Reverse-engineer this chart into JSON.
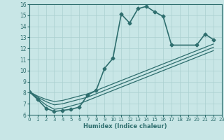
{
  "xlabel": "Humidex (Indice chaleur)",
  "xlim": [
    0,
    23
  ],
  "ylim": [
    6,
    16
  ],
  "xticks": [
    0,
    1,
    2,
    3,
    4,
    5,
    6,
    7,
    8,
    9,
    10,
    11,
    12,
    13,
    14,
    15,
    16,
    17,
    18,
    19,
    20,
    21,
    22,
    23
  ],
  "yticks": [
    6,
    7,
    8,
    9,
    10,
    11,
    12,
    13,
    14,
    15,
    16
  ],
  "background_color": "#c8e6e6",
  "grid_color": "#aad0d0",
  "line_color": "#2e6e6e",
  "lines": [
    {
      "x": [
        0,
        1,
        2,
        3,
        4,
        5,
        6,
        7,
        8,
        9,
        10,
        11,
        12,
        13,
        14,
        15,
        16,
        17,
        20,
        21,
        22
      ],
      "y": [
        8.1,
        7.4,
        6.6,
        6.3,
        6.4,
        6.5,
        6.7,
        7.8,
        8.2,
        10.2,
        11.1,
        15.1,
        14.3,
        15.6,
        15.8,
        15.3,
        14.9,
        12.3,
        12.3,
        13.3,
        12.8
      ],
      "marker": "D",
      "markersize": 2.5,
      "linewidth": 1.2,
      "linestyle": "-"
    },
    {
      "x": [
        0,
        1,
        2,
        3,
        4,
        5,
        6,
        7,
        8,
        9,
        10,
        11,
        12,
        13,
        14,
        15,
        16,
        17,
        20,
        21,
        22
      ],
      "y": [
        8.1,
        7.7,
        7.4,
        7.2,
        7.3,
        7.5,
        7.7,
        7.9,
        8.2,
        8.5,
        8.8,
        9.1,
        9.4,
        9.7,
        10.0,
        10.3,
        10.6,
        10.9,
        11.8,
        12.1,
        12.4
      ],
      "marker": null,
      "markersize": 0,
      "linewidth": 0.9,
      "linestyle": "-"
    },
    {
      "x": [
        0,
        1,
        2,
        3,
        4,
        5,
        6,
        7,
        8,
        9,
        10,
        11,
        12,
        13,
        14,
        15,
        16,
        17,
        20,
        21,
        22
      ],
      "y": [
        8.1,
        7.6,
        7.2,
        6.9,
        7.0,
        7.2,
        7.4,
        7.6,
        7.9,
        8.2,
        8.5,
        8.8,
        9.1,
        9.4,
        9.7,
        10.0,
        10.3,
        10.6,
        11.5,
        11.8,
        12.1
      ],
      "marker": null,
      "markersize": 0,
      "linewidth": 0.9,
      "linestyle": "-"
    },
    {
      "x": [
        0,
        1,
        2,
        3,
        4,
        5,
        6,
        7,
        8,
        9,
        10,
        11,
        12,
        13,
        14,
        15,
        16,
        17,
        20,
        21,
        22
      ],
      "y": [
        8.1,
        7.5,
        6.9,
        6.5,
        6.6,
        6.8,
        7.0,
        7.3,
        7.6,
        7.9,
        8.2,
        8.5,
        8.8,
        9.1,
        9.4,
        9.7,
        10.0,
        10.3,
        11.2,
        11.5,
        11.8
      ],
      "marker": null,
      "markersize": 0,
      "linewidth": 0.9,
      "linestyle": "-"
    }
  ]
}
